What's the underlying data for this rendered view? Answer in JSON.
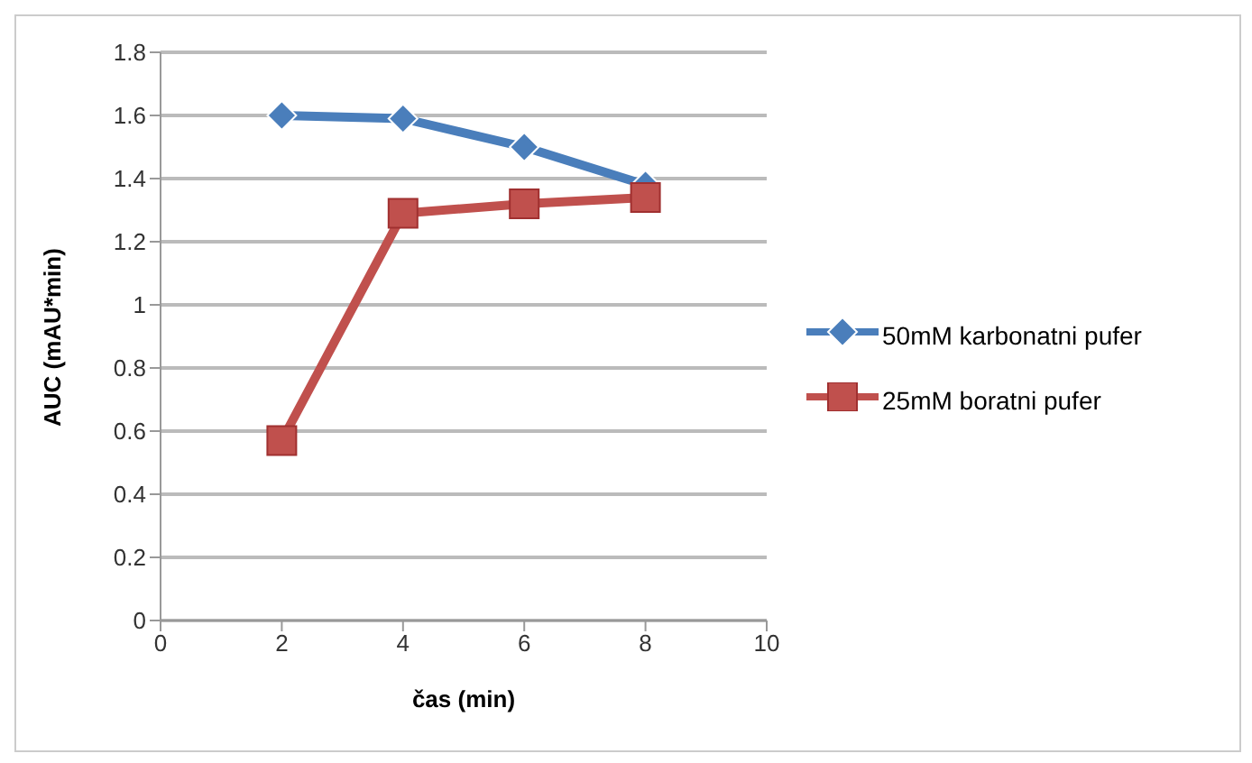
{
  "chart_data": {
    "type": "line",
    "xlabel": "čas (min)",
    "ylabel": "AUC (mAU*min)",
    "x": [
      2,
      4,
      6,
      8
    ],
    "series": [
      {
        "name": "50mM karbonatni pufer",
        "color": "#4a7ebb",
        "values": [
          1.6,
          1.59,
          1.5,
          1.38
        ],
        "marker": "diamond"
      },
      {
        "name": "25mM boratni pufer",
        "color": "#c0504d",
        "values": [
          0.57,
          1.29,
          1.32,
          1.34
        ],
        "marker": "square"
      }
    ],
    "xlim": [
      0,
      10
    ],
    "xticks": [
      0,
      2,
      4,
      6,
      8,
      10
    ],
    "ylim": [
      0,
      1.8
    ],
    "yticks": [
      0,
      0.2,
      0.4,
      0.6,
      0.8,
      1,
      1.2,
      1.4,
      1.6,
      1.8
    ],
    "grid": "y",
    "legend": "right"
  }
}
